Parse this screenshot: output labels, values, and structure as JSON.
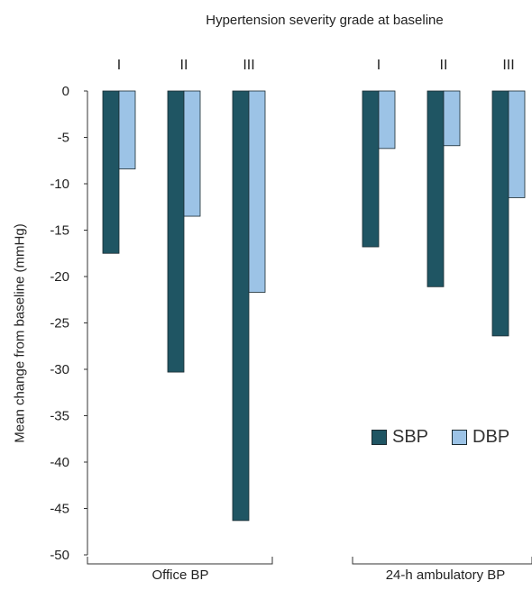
{
  "chart_data": {
    "type": "bar",
    "title": "Hypertension severity grade at baseline",
    "ylabel": "Mean change from baseline (mmHg)",
    "ylim": [
      -50,
      0
    ],
    "yticks": [
      0,
      -5,
      -10,
      -15,
      -20,
      -25,
      -30,
      -35,
      -40,
      -45,
      -50
    ],
    "categories": [
      "I",
      "II",
      "III",
      "I",
      "II",
      "III"
    ],
    "groups": [
      {
        "label": "Office BP",
        "categories": [
          "I",
          "II",
          "III"
        ]
      },
      {
        "label": "24-h ambulatory BP",
        "categories": [
          "I",
          "II",
          "III"
        ]
      }
    ],
    "series": [
      {
        "name": "SBP",
        "color": "#1f5563",
        "values": [
          -17.5,
          -30.3,
          -46.3,
          -16.8,
          -21.1,
          -26.4
        ]
      },
      {
        "name": "DBP",
        "color": "#9cc3e6",
        "values": [
          -8.4,
          -13.5,
          -21.7,
          -6.2,
          -5.9,
          -11.5
        ]
      }
    ],
    "legend_position": "right",
    "grid": false
  }
}
